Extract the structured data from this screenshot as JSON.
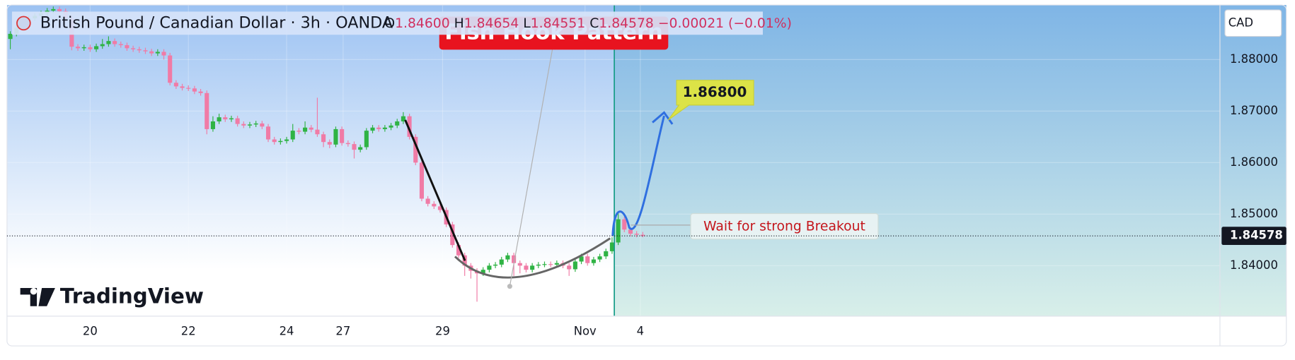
{
  "chart_data": {
    "type": "candlestick",
    "title": "British Pound / Canadian Dollar · 3h · OANDA",
    "header": {
      "o_label": "O",
      "open": "1.84600",
      "h_label": "H",
      "high": "1.84654",
      "l_label": "L",
      "low": "1.84551",
      "c_label": "C",
      "close": "1.84578",
      "change": "−0.00021 (−0.01%)"
    },
    "currency": "CAD",
    "brand": "TradingView",
    "annotations": {
      "pattern": "Fish Hook Pattern",
      "target": "1.86800",
      "note": "Wait for strong Breakout"
    },
    "up_color": "#2fb344",
    "down_color": "#f07ba6",
    "open": [
      1.884,
      1.885,
      1.8862,
      1.8875,
      1.888,
      1.8885,
      1.889,
      1.8895,
      1.8898,
      1.8894,
      1.888,
      1.8825,
      1.8822,
      1.8824,
      1.882,
      1.8826,
      1.883,
      1.8836,
      1.883,
      1.8828,
      1.8822,
      1.882,
      1.8818,
      1.8816,
      1.8812,
      1.8815,
      1.8808,
      1.8755,
      1.8748,
      1.8745,
      1.8744,
      1.8738,
      1.8735,
      1.8665,
      1.868,
      1.8688,
      1.8684,
      1.8686,
      1.8675,
      1.8672,
      1.8674,
      1.8676,
      1.867,
      1.8645,
      1.864,
      1.8642,
      1.8645,
      1.8662,
      1.866,
      1.8668,
      1.8664,
      1.8655,
      1.864,
      1.8635,
      1.8665,
      1.8638,
      1.8636,
      1.8625,
      1.863,
      1.8662,
      1.8668,
      1.8665,
      1.8668,
      1.8672,
      1.868,
      1.869,
      1.865,
      1.86,
      1.853,
      1.852,
      1.8515,
      1.8508,
      1.848,
      1.844,
      1.842,
      1.84,
      1.839,
      1.8385,
      1.8392,
      1.84,
      1.8402,
      1.8412,
      1.842,
      1.8405,
      1.84,
      1.8392,
      1.84,
      1.8402,
      1.8403,
      1.8402,
      1.8405,
      1.84,
      1.8393,
      1.8408,
      1.8418,
      1.8405,
      1.8412,
      1.8418,
      1.8428,
      1.8445,
      1.849,
      1.847,
      1.8462,
      1.846
    ],
    "high": [
      1.8855,
      1.8867,
      1.888,
      1.8885,
      1.889,
      1.8895,
      1.89,
      1.8903,
      1.8903,
      1.8899,
      1.8885,
      1.883,
      1.8829,
      1.8829,
      1.8831,
      1.884,
      1.8845,
      1.8841,
      1.8835,
      1.8833,
      1.8827,
      1.8825,
      1.8823,
      1.8821,
      1.882,
      1.882,
      1.8813,
      1.876,
      1.8753,
      1.875,
      1.8749,
      1.8743,
      1.874,
      1.869,
      1.8695,
      1.8693,
      1.8691,
      1.8691,
      1.868,
      1.8679,
      1.8681,
      1.8681,
      1.8675,
      1.865,
      1.8647,
      1.865,
      1.8675,
      1.8667,
      1.868,
      1.8673,
      1.8726,
      1.866,
      1.8645,
      1.867,
      1.867,
      1.8643,
      1.8641,
      1.8635,
      1.8667,
      1.8673,
      1.8673,
      1.8673,
      1.8677,
      1.8685,
      1.8698,
      1.8695,
      1.8655,
      1.8605,
      1.8535,
      1.8525,
      1.852,
      1.8513,
      1.8485,
      1.8445,
      1.8425,
      1.8405,
      1.8395,
      1.8397,
      1.8405,
      1.8407,
      1.8417,
      1.8425,
      1.8425,
      1.841,
      1.8405,
      1.8405,
      1.8407,
      1.8408,
      1.8408,
      1.841,
      1.841,
      1.8405,
      1.8413,
      1.8423,
      1.8423,
      1.8417,
      1.8423,
      1.8433,
      1.8455,
      1.8505,
      1.8495,
      1.8475,
      1.8467,
      1.84654
    ],
    "low": [
      1.882,
      1.8845,
      1.8857,
      1.887,
      1.8875,
      1.888,
      1.8885,
      1.889,
      1.8889,
      1.8875,
      1.8818,
      1.8817,
      1.8817,
      1.8815,
      1.8815,
      1.8821,
      1.8825,
      1.8825,
      1.8823,
      1.8817,
      1.8815,
      1.8813,
      1.8811,
      1.8807,
      1.8807,
      1.88,
      1.875,
      1.8743,
      1.874,
      1.8739,
      1.8733,
      1.873,
      1.8655,
      1.866,
      1.8675,
      1.8679,
      1.8679,
      1.867,
      1.8667,
      1.8667,
      1.8669,
      1.8665,
      1.864,
      1.8635,
      1.8635,
      1.8637,
      1.864,
      1.8655,
      1.8655,
      1.8659,
      1.865,
      1.863,
      1.8628,
      1.863,
      1.8633,
      1.8631,
      1.8608,
      1.862,
      1.8625,
      1.8657,
      1.866,
      1.866,
      1.8663,
      1.8667,
      1.8675,
      1.8645,
      1.8595,
      1.8525,
      1.8515,
      1.851,
      1.8503,
      1.8475,
      1.8435,
      1.8415,
      1.838,
      1.8375,
      1.833,
      1.838,
      1.8387,
      1.8395,
      1.8397,
      1.8407,
      1.838,
      1.8385,
      1.8387,
      1.8387,
      1.8395,
      1.8397,
      1.8397,
      1.8397,
      1.8395,
      1.838,
      1.8388,
      1.8403,
      1.84,
      1.84,
      1.8407,
      1.8413,
      1.8423,
      1.844,
      1.8465,
      1.8457,
      1.8455,
      1.84551
    ],
    "close": [
      1.885,
      1.8862,
      1.8875,
      1.888,
      1.8885,
      1.889,
      1.8895,
      1.8898,
      1.8894,
      1.888,
      1.8825,
      1.8822,
      1.8824,
      1.882,
      1.8826,
      1.883,
      1.8836,
      1.883,
      1.8828,
      1.8822,
      1.882,
      1.8818,
      1.8816,
      1.8812,
      1.8815,
      1.8808,
      1.8755,
      1.8748,
      1.8745,
      1.8744,
      1.8738,
      1.8735,
      1.8665,
      1.868,
      1.8688,
      1.8684,
      1.8686,
      1.8675,
      1.8672,
      1.8674,
      1.8676,
      1.867,
      1.8645,
      1.864,
      1.8642,
      1.8645,
      1.8662,
      1.866,
      1.8668,
      1.8664,
      1.8655,
      1.864,
      1.8635,
      1.8665,
      1.8638,
      1.8636,
      1.8625,
      1.863,
      1.8662,
      1.8668,
      1.8665,
      1.8668,
      1.8672,
      1.868,
      1.869,
      1.865,
      1.86,
      1.853,
      1.852,
      1.8515,
      1.8508,
      1.848,
      1.844,
      1.842,
      1.84,
      1.839,
      1.8385,
      1.8392,
      1.84,
      1.8402,
      1.8412,
      1.842,
      1.8405,
      1.84,
      1.8392,
      1.84,
      1.8402,
      1.8403,
      1.8402,
      1.8405,
      1.84,
      1.8393,
      1.8408,
      1.8418,
      1.8405,
      1.8412,
      1.8418,
      1.8428,
      1.8445,
      1.849,
      1.847,
      1.8462,
      1.846,
      1.84578
    ],
    "last_price": {
      "value": 1.84578,
      "label": "1.84578"
    },
    "xlim": [
      -0.54,
      197
    ],
    "xticks": [
      {
        "value": 13,
        "label": "20"
      },
      {
        "value": 29,
        "label": "22"
      },
      {
        "value": 45,
        "label": "24"
      },
      {
        "value": 54.2,
        "label": "27"
      },
      {
        "value": 70.4,
        "label": "29"
      },
      {
        "value": 93.6,
        "label": "Nov"
      },
      {
        "value": 102.6,
        "label": "4"
      }
    ],
    "ylim": [
      1.8302,
      1.8906
    ],
    "yticks": [
      {
        "value": 1.84,
        "label": "1.84000"
      },
      {
        "value": 1.85,
        "label": "1.85000"
      },
      {
        "value": 1.86,
        "label": "1.86000"
      },
      {
        "value": 1.87,
        "label": "1.87000"
      },
      {
        "value": 1.88,
        "label": "1.88000"
      }
    ]
  }
}
